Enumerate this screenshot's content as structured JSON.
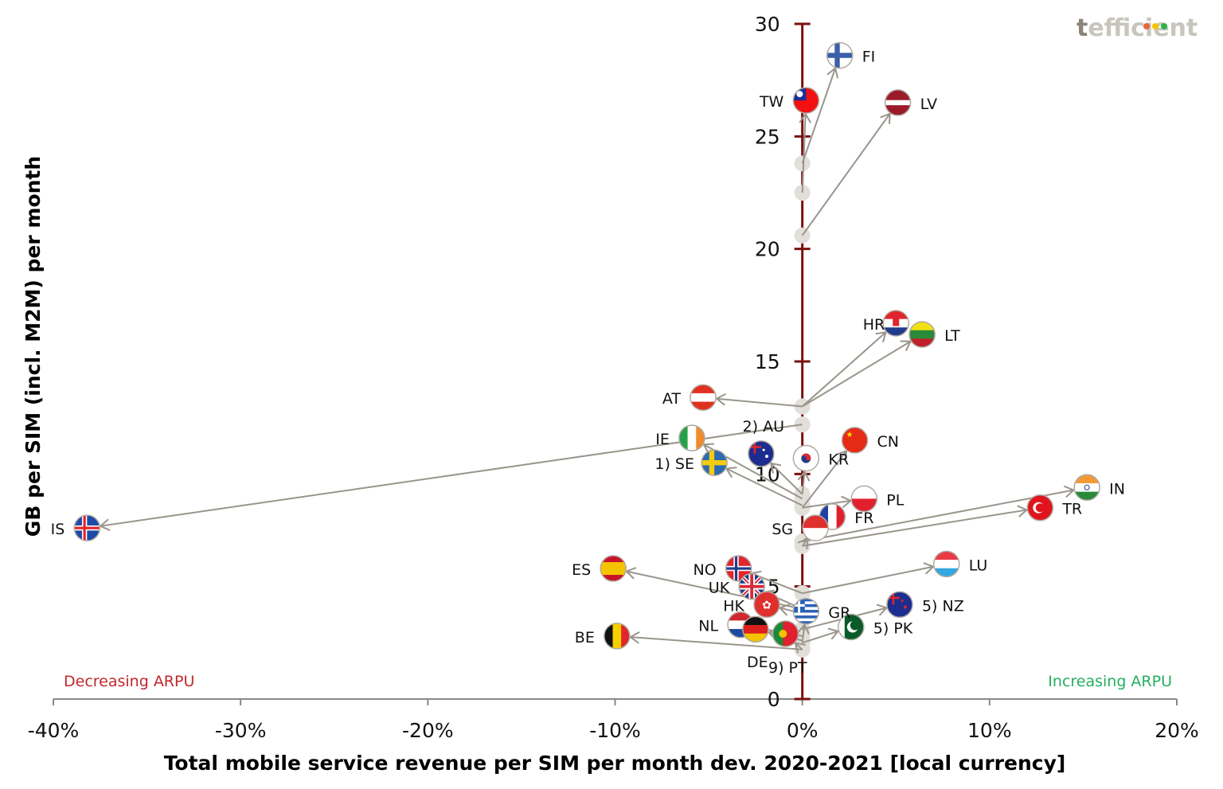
{
  "logo": {
    "first_letter": "t",
    "rest": "efficient",
    "dot_colors": [
      "#e8643a",
      "#f2c500",
      "#2db34a"
    ]
  },
  "chart_data": {
    "type": "scatter",
    "subtype": "arrow-scatter (2020 origin to 2021 endpoint)",
    "title": "",
    "xlabel": "Total mobile service revenue per SIM per month dev. 2020-2021 [local currency]",
    "ylabel": "GB per SIM (incl. M2M) per month",
    "xlim": [
      -40,
      20
    ],
    "ylim": [
      0,
      30
    ],
    "x_unit": "%",
    "x_ticks": [
      "-40%",
      "-30%",
      "-20%",
      "-10%",
      "0%",
      "10%",
      "20%"
    ],
    "x_tick_values": [
      -40,
      -30,
      -20,
      -10,
      0,
      10,
      20
    ],
    "y_ticks": [
      "0",
      "5",
      "10",
      "15",
      "20",
      "25",
      "30"
    ],
    "y_tick_values": [
      0,
      5,
      10,
      15,
      20,
      25,
      30
    ],
    "grid": false,
    "annotations": [
      {
        "text": "Decreasing ARPU",
        "position": "bottom-left",
        "color": "#c0272d"
      },
      {
        "text": "Increasing ARPU",
        "position": "bottom-right",
        "color": "#27ae60"
      }
    ],
    "colors": {
      "y_axis": "#7a1010",
      "x_axis": "#888888",
      "arrow": "#9a958c",
      "origin_dot": "#e2dfdb"
    },
    "points": [
      {
        "code": "FI",
        "label": "FI",
        "x": 2.0,
        "y": 28.6,
        "y_2020": 23.8,
        "flag": "finland"
      },
      {
        "code": "TW",
        "label": "TW",
        "x": 0.2,
        "y": 26.6,
        "y_2020": 22.5,
        "flag": "taiwan"
      },
      {
        "code": "LV",
        "label": "LV",
        "x": 5.1,
        "y": 26.5,
        "y_2020": 20.6,
        "flag": "latvia"
      },
      {
        "code": "HR",
        "label": "HR",
        "x": 5.0,
        "y": 16.7,
        "y_2020": 13.0,
        "flag": "croatia"
      },
      {
        "code": "LT",
        "label": "LT",
        "x": 6.4,
        "y": 16.2,
        "y_2020": 13.0,
        "flag": "lithuania"
      },
      {
        "code": "AT",
        "label": "AT",
        "x": -5.3,
        "y": 13.4,
        "y_2020": 13.0,
        "flag": "austria"
      },
      {
        "code": "IS",
        "label": "IS",
        "x": -38.2,
        "y": 7.6,
        "y_2020": 12.2,
        "flag": "iceland"
      },
      {
        "code": "IE",
        "label": "IE",
        "x": -5.9,
        "y": 11.6,
        "y_2020": 8.9,
        "flag": "ireland"
      },
      {
        "code": "SE",
        "label": "1) SE",
        "x": -4.7,
        "y": 10.5,
        "y_2020": 8.6,
        "flag": "sweden"
      },
      {
        "code": "AU",
        "label": "2) AU",
        "x": -2.2,
        "y": 10.9,
        "y_2020": 9.1,
        "flag": "australia"
      },
      {
        "code": "KR",
        "label": "KR",
        "x": 0.2,
        "y": 10.7,
        "y_2020": 9.1,
        "flag": "korea"
      },
      {
        "code": "CN",
        "label": "CN",
        "x": 2.8,
        "y": 11.5,
        "y_2020": 8.5,
        "flag": "china"
      },
      {
        "code": "PL",
        "label": "PL",
        "x": 3.3,
        "y": 8.9,
        "y_2020": 8.5,
        "flag": "poland"
      },
      {
        "code": "FR",
        "label": "FR",
        "x": 1.6,
        "y": 8.1,
        "y_2020": 7.0,
        "flag": "france"
      },
      {
        "code": "SG",
        "label": "SG",
        "x": 0.7,
        "y": 7.6,
        "y_2020": 6.8,
        "flag": "singapore"
      },
      {
        "code": "IN",
        "label": "IN",
        "x": 15.2,
        "y": 9.4,
        "y_2020": 7.0,
        "flag": "india"
      },
      {
        "code": "TR",
        "label": "TR",
        "x": 12.7,
        "y": 8.5,
        "y_2020": 6.8,
        "flag": "turkey"
      },
      {
        "code": "LU",
        "label": "LU",
        "x": 7.7,
        "y": 6.0,
        "y_2020": 4.7,
        "flag": "luxembourg"
      },
      {
        "code": "NO",
        "label": "NO",
        "x": -3.4,
        "y": 5.8,
        "y_2020": 4.7,
        "flag": "norway"
      },
      {
        "code": "ES",
        "label": "ES",
        "x": -10.1,
        "y": 5.8,
        "y_2020": 4.0,
        "flag": "spain"
      },
      {
        "code": "UK",
        "label": "UK",
        "x": -2.7,
        "y": 5.0,
        "y_2020": 4.0,
        "flag": "uk"
      },
      {
        "code": "HK",
        "label": "HK",
        "x": -1.9,
        "y": 4.2,
        "y_2020": 3.8,
        "flag": "hongkong"
      },
      {
        "code": "GR",
        "label": "GR",
        "x": 0.2,
        "y": 3.9,
        "y_2020": 2.5,
        "flag": "greece"
      },
      {
        "code": "NZ",
        "label": "5) NZ",
        "x": 5.2,
        "y": 4.2,
        "y_2020": 3.1,
        "flag": "newzealand"
      },
      {
        "code": "PK",
        "label": "5) PK",
        "x": 2.6,
        "y": 3.2,
        "y_2020": 2.5,
        "flag": "pakistan"
      },
      {
        "code": "NL",
        "label": "NL",
        "x": -3.3,
        "y": 3.3,
        "y_2020": 2.8,
        "flag": "netherlands"
      },
      {
        "code": "DE",
        "label": "DE",
        "x": -2.5,
        "y": 3.1,
        "y_2020": 2.6,
        "flag": "germany"
      },
      {
        "code": "PT",
        "label": "9) PT",
        "x": -0.9,
        "y": 2.9,
        "y_2020": 2.2,
        "flag": "portugal"
      },
      {
        "code": "BE",
        "label": "BE",
        "x": -9.9,
        "y": 2.8,
        "y_2020": 2.2,
        "flag": "belgium"
      }
    ]
  }
}
